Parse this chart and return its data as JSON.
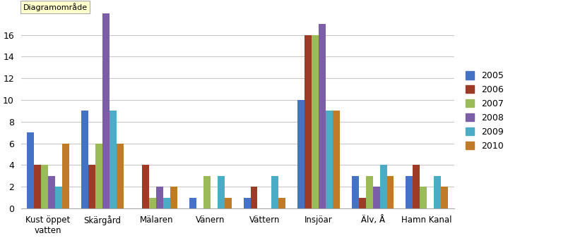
{
  "categories": [
    "Kust öppet\nvatten",
    "Skärgård",
    "Mälaren",
    "Vänern",
    "Vättern",
    "Insjöar",
    "Älv, Å",
    "Hamn Kanal"
  ],
  "series": {
    "2005": [
      7,
      9,
      0,
      1,
      1,
      10,
      3,
      3
    ],
    "2006": [
      4,
      4,
      4,
      0,
      2,
      16,
      1,
      4
    ],
    "2007": [
      4,
      6,
      1,
      3,
      0,
      16,
      3,
      2
    ],
    "2008": [
      3,
      18,
      2,
      0,
      0,
      17,
      2,
      0
    ],
    "2009": [
      2,
      9,
      1,
      3,
      3,
      9,
      4,
      3
    ],
    "2010": [
      6,
      6,
      2,
      1,
      1,
      9,
      3,
      2
    ]
  },
  "bar_colors": {
    "2005": "#4472C4",
    "2006": "#9E3B26",
    "2007": "#9BBB59",
    "2008": "#7B5EA7",
    "2009": "#4BACC6",
    "2010": "#C07B28"
  },
  "ylim": [
    0,
    18
  ],
  "yticks": [
    0,
    2,
    4,
    6,
    8,
    10,
    12,
    14,
    16
  ],
  "background_color": "#FFFFFF",
  "plot_bg_color": "#FFFFFF",
  "grid_color": "#C8C8C8",
  "title_box_text": "Diagramområde",
  "legend_years": [
    "2005",
    "2006",
    "2007",
    "2008",
    "2009",
    "2010"
  ]
}
